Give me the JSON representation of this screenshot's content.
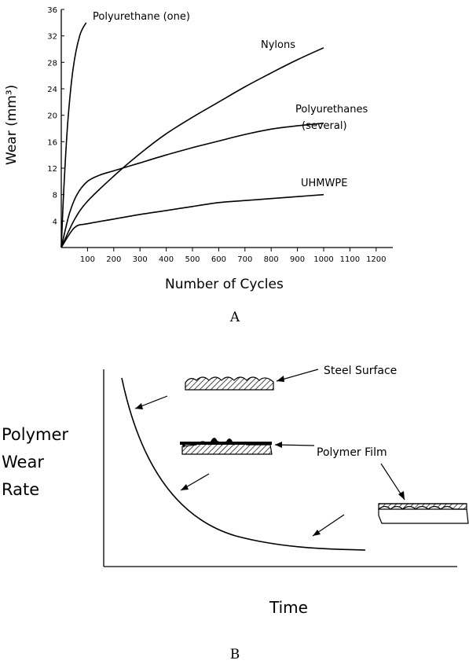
{
  "chart_data": [
    {
      "type": "line",
      "panel": "A",
      "xlabel": "Number of Cycles",
      "ylabel": "Wear (mm³)",
      "xlim": [
        0,
        1250
      ],
      "ylim": [
        0,
        36
      ],
      "x_ticks": [
        100,
        200,
        300,
        400,
        500,
        600,
        700,
        800,
        900,
        1000,
        1100,
        1200
      ],
      "y_ticks": [
        4,
        8,
        12,
        16,
        20,
        24,
        28,
        32,
        36
      ],
      "series": [
        {
          "name": "Polyurethane (one)",
          "x": [
            0,
            10,
            25,
            45,
            70,
            95
          ],
          "y": [
            0,
            9,
            19,
            27,
            32,
            34
          ]
        },
        {
          "name": "Nylons",
          "x": [
            0,
            50,
            100,
            200,
            300,
            400,
            500,
            600,
            700,
            800,
            900,
            1000
          ],
          "y": [
            0,
            4.2,
            7,
            10.8,
            14.2,
            17.2,
            19.7,
            22,
            24.3,
            26.4,
            28.4,
            30.2
          ]
        },
        {
          "name": "Polyurethanes (several)",
          "x": [
            0,
            30,
            60,
            100,
            150,
            200,
            300,
            400,
            500,
            600,
            700,
            800,
            900,
            1000
          ],
          "y": [
            0,
            5,
            8,
            10,
            11,
            11.6,
            12.8,
            14,
            15.1,
            16.1,
            17.1,
            17.9,
            18.4,
            18.8
          ]
        },
        {
          "name": "UHMWPE",
          "x": [
            0,
            50,
            100,
            200,
            300,
            400,
            500,
            600,
            700,
            800,
            900,
            1000
          ],
          "y": [
            0,
            3,
            3.6,
            4.3,
            5,
            5.6,
            6.2,
            6.8,
            7.1,
            7.4,
            7.7,
            8
          ]
        }
      ],
      "caption": "A"
    },
    {
      "type": "line",
      "panel": "B",
      "xlabel": "Time",
      "ylabel_lines": [
        "Polymer",
        "Wear",
        "Rate"
      ],
      "annotations": [
        "Steel Surface",
        "Polymer Film"
      ],
      "caption": "B"
    }
  ]
}
